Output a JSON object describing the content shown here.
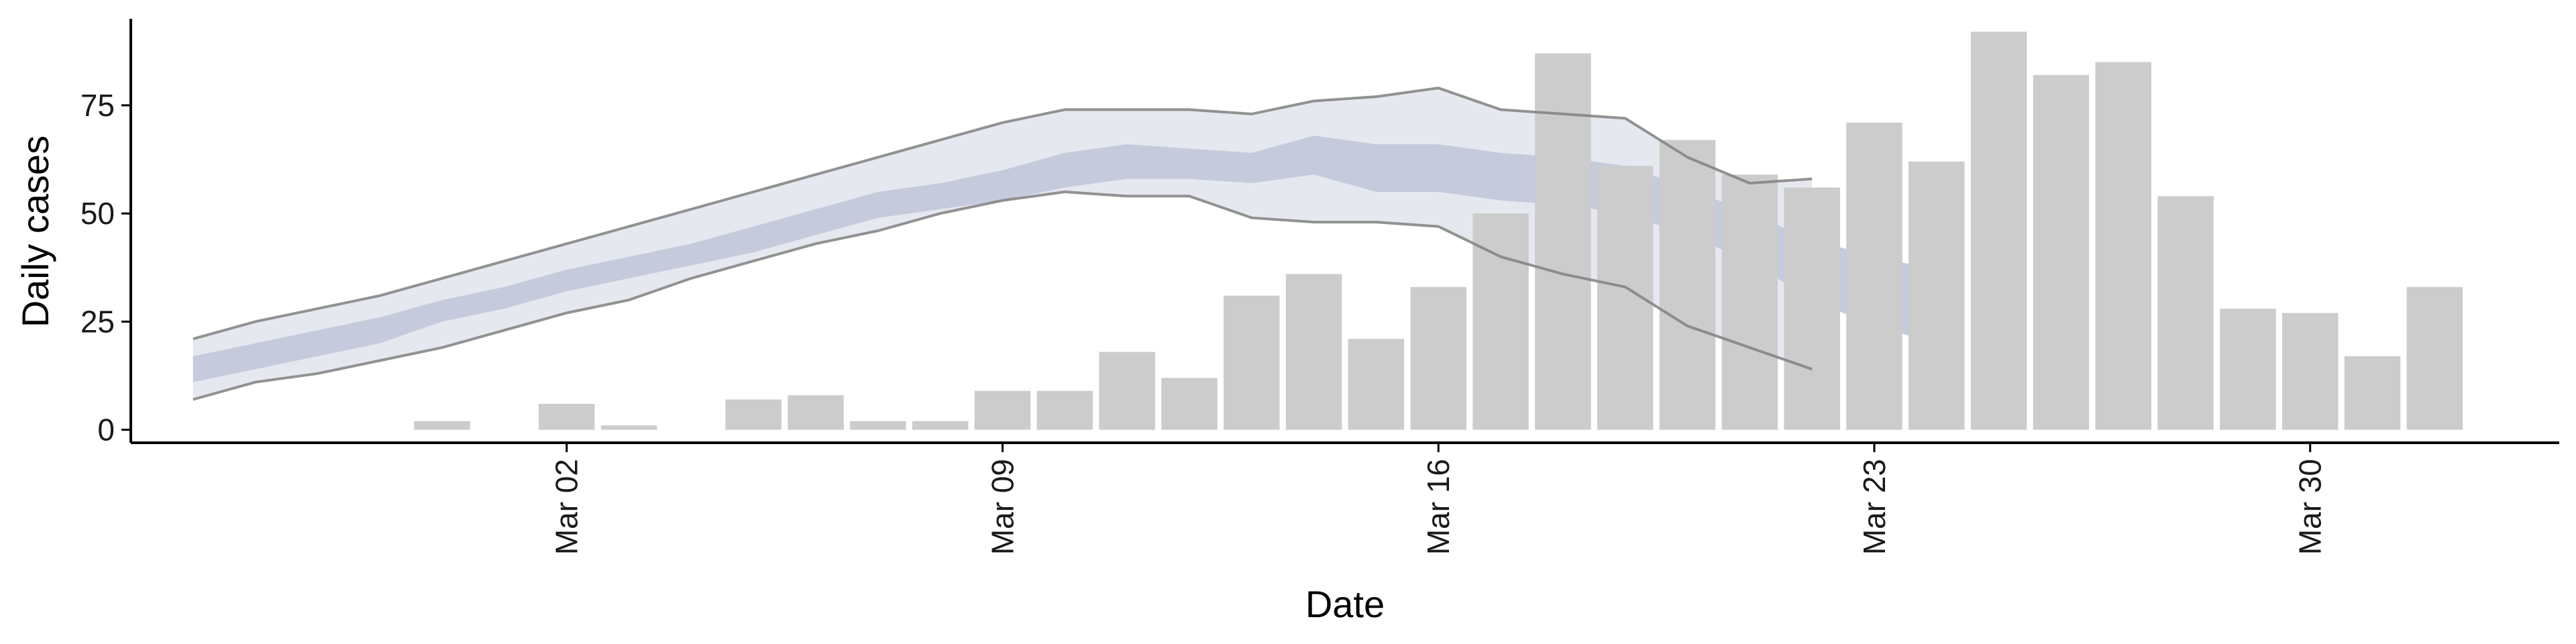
{
  "chart_data": {
    "type": "bar",
    "xlabel": "Date",
    "ylabel": "Daily cases",
    "x_axis": {
      "type": "date",
      "range": [
        "2020-02-24",
        "2020-04-03"
      ],
      "ticks": [
        {
          "date": "2020-03-02",
          "label": "Mar 02"
        },
        {
          "date": "2020-03-09",
          "label": "Mar 09"
        },
        {
          "date": "2020-03-16",
          "label": "Mar 16"
        },
        {
          "date": "2020-03-23",
          "label": "Mar 23"
        },
        {
          "date": "2020-03-30",
          "label": "Mar 30"
        }
      ]
    },
    "y_axis": {
      "range": [
        -3,
        95
      ],
      "ticks": [
        0,
        25,
        50,
        75
      ]
    },
    "grid": false,
    "legend": "none",
    "colors": {
      "bars": "#cccccc",
      "bounds": "#808080",
      "outer_band": "#e6e8f0",
      "inner_band": "#c5cbdc"
    },
    "observed_cases": {
      "dates": [
        "2020-02-29",
        "2020-03-02",
        "2020-03-03",
        "2020-03-04",
        "2020-03-05",
        "2020-03-06",
        "2020-03-07",
        "2020-03-08",
        "2020-03-09",
        "2020-03-10",
        "2020-03-11",
        "2020-03-12",
        "2020-03-13",
        "2020-03-14",
        "2020-03-15",
        "2020-03-16",
        "2020-03-17",
        "2020-03-18",
        "2020-03-19",
        "2020-03-20",
        "2020-03-21",
        "2020-03-22",
        "2020-03-23",
        "2020-03-24",
        "2020-03-25",
        "2020-03-26",
        "2020-03-27",
        "2020-03-28",
        "2020-03-29",
        "2020-03-30",
        "2020-03-31",
        "2020-04-01",
        "2020-04-02"
      ],
      "values": [
        2,
        6,
        1,
        0,
        7,
        8,
        2,
        2,
        9,
        9,
        18,
        12,
        31,
        36,
        21,
        33,
        50,
        87,
        61,
        67,
        59,
        56,
        71,
        62,
        92,
        82,
        85,
        54,
        28,
        27,
        17,
        33,
        0
      ]
    },
    "estimate": {
      "dates": [
        "2020-02-25",
        "2020-02-26",
        "2020-02-27",
        "2020-02-28",
        "2020-02-29",
        "2020-03-01",
        "2020-03-02",
        "2020-03-03",
        "2020-03-04",
        "2020-03-05",
        "2020-03-06",
        "2020-03-07",
        "2020-03-08",
        "2020-03-09",
        "2020-03-10",
        "2020-03-11",
        "2020-03-12",
        "2020-03-13",
        "2020-03-14",
        "2020-03-15",
        "2020-03-16",
        "2020-03-17",
        "2020-03-18",
        "2020-03-19",
        "2020-03-20",
        "2020-03-21",
        "2020-03-22",
        "2020-03-23",
        "2020-03-24"
      ],
      "lower_90": [
        7,
        11,
        13,
        16,
        19,
        23,
        27,
        30,
        35,
        39,
        43,
        46,
        50,
        53,
        55,
        54,
        54,
        49,
        48,
        48,
        47,
        40,
        36,
        33,
        24,
        19,
        14,
        null,
        null
      ],
      "upper_90": [
        21,
        25,
        28,
        31,
        35,
        39,
        43,
        47,
        51,
        55,
        59,
        63,
        67,
        71,
        74,
        74,
        74,
        73,
        76,
        77,
        79,
        74,
        73,
        72,
        63,
        57,
        58,
        null,
        null
      ],
      "lower_50": [
        11,
        14,
        17,
        20,
        25,
        28,
        32,
        35,
        38,
        41,
        45,
        49,
        51,
        53,
        56,
        58,
        58,
        57,
        59,
        55,
        55,
        53,
        52,
        50,
        45,
        39,
        30,
        24,
        20
      ],
      "upper_50": [
        17,
        20,
        23,
        26,
        30,
        33,
        37,
        40,
        43,
        47,
        51,
        55,
        57,
        60,
        64,
        66,
        65,
        64,
        68,
        66,
        66,
        64,
        63,
        61,
        56,
        50,
        44,
        40,
        37
      ]
    }
  }
}
